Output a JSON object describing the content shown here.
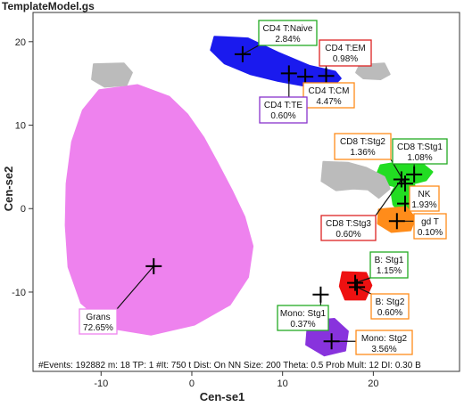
{
  "window": {
    "title": "TemplateModel.gs"
  },
  "footer": "#Events: 192882 m: 18 TP: 1 #It: 750 t Dist: On NN Size: 200 Theta: 0.5 Prob Mult: 12 DI: 0.30 B",
  "chart_data": {
    "type": "scatter",
    "title": "",
    "xlabel": "Cen-se1",
    "ylabel": "Cen-se2",
    "xlim": [
      -17.5,
      29.5
    ],
    "ylim": [
      -19.5,
      23.5
    ],
    "xticks": [
      -10,
      0,
      10,
      20
    ],
    "yticks": [
      -10,
      0,
      10,
      20
    ],
    "grid": false,
    "populations": [
      {
        "name": "CD4 T:Naive",
        "percent": "2.84%",
        "color": "#1a1aee",
        "centroid": [
          5.6,
          18.5
        ],
        "box_color": "#22aa22"
      },
      {
        "name": "CD4 T:EM",
        "percent": "0.98%",
        "color": "#1a1aee",
        "centroid": [
          14.8,
          15.9
        ],
        "box_color": "#dd2222"
      },
      {
        "name": "CD4 T:CM",
        "percent": "4.47%",
        "color": "#1a1aee",
        "centroid": [
          12.5,
          15.8
        ],
        "box_color": "#ff8c1a"
      },
      {
        "name": "CD4 T:TE",
        "percent": "0.60%",
        "color": "#1a1aee",
        "centroid": [
          10.7,
          16.2
        ],
        "box_color": "#8833cc"
      },
      {
        "name": "CD8 T:Stg2",
        "percent": "1.36%",
        "color": "#22dd22",
        "centroid": [
          23.5,
          3.0
        ],
        "box_color": "#ff8c1a"
      },
      {
        "name": "CD8 T:Stg1",
        "percent": "1.08%",
        "color": "#22dd22",
        "centroid": [
          24.5,
          4.1
        ],
        "box_color": "#22aa22"
      },
      {
        "name": "NK",
        "percent": "1.93%",
        "color": "#22dd22",
        "centroid": [
          23.5,
          0.6
        ],
        "box_color": "#ff8c1a"
      },
      {
        "name": "gd T",
        "percent": "0.10%",
        "color": "#ff8c1a",
        "centroid": [
          22.6,
          -1.5
        ],
        "box_color": "#ff8c1a"
      },
      {
        "name": "CD8 T:Stg3",
        "percent": "0.60%",
        "color": "#22dd22",
        "centroid": [
          23.1,
          3.5
        ],
        "box_color": "#dd2222"
      },
      {
        "name": "Grans",
        "percent": "72.65%",
        "color": "#ee82ee",
        "centroid": [
          -4.2,
          -6.9
        ],
        "box_color": "#ee82ee"
      },
      {
        "name": "B: Stg1",
        "percent": "1.15%",
        "color": "#ee1111",
        "centroid": [
          18.0,
          -8.9
        ],
        "box_color": "#22aa22"
      },
      {
        "name": "B: Stg2",
        "percent": "0.60%",
        "color": "#ee1111",
        "centroid": [
          18.2,
          -9.4
        ],
        "box_color": "#ff8c1a"
      },
      {
        "name": "Mono: Stg1",
        "percent": "0.37%",
        "color": "#8833dd",
        "centroid": [
          14.2,
          -10.3
        ],
        "box_color": "#22aa22"
      },
      {
        "name": "Mono: Stg2",
        "percent": "3.56%",
        "color": "#8833dd",
        "centroid": [
          15.4,
          -15.9
        ],
        "box_color": "#ff8c1a"
      }
    ],
    "unlabeled_clusters": [
      {
        "color": "#bbbbbb",
        "center": [
          -8.0,
          16.0
        ]
      },
      {
        "color": "#bbbbbb",
        "center": [
          20.0,
          16.4
        ]
      },
      {
        "color": "#bbbbbb",
        "center": [
          17.5,
          3.7
        ]
      }
    ]
  }
}
